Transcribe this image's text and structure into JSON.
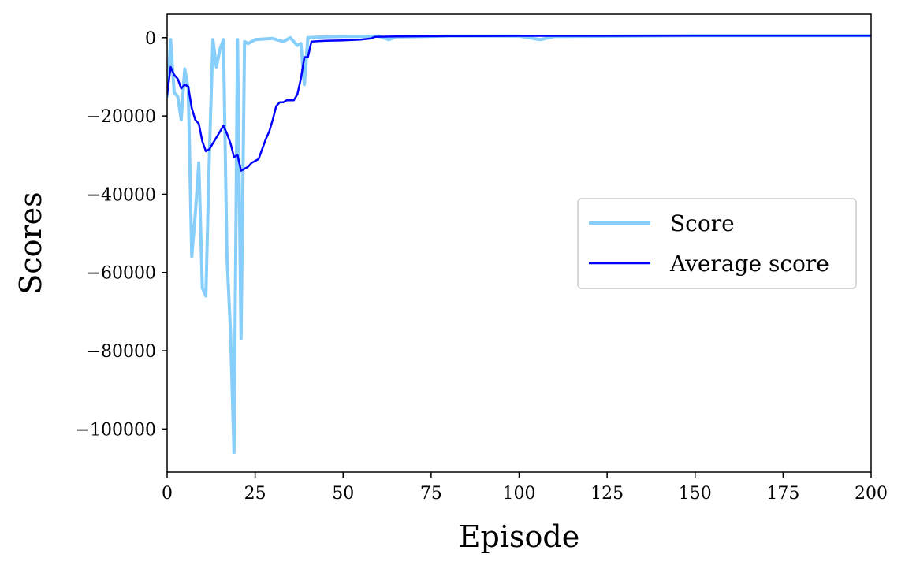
{
  "chart_data": {
    "type": "line",
    "title": "",
    "xlabel": "Episode",
    "ylabel": "Scores",
    "xlim": [
      0,
      200
    ],
    "ylim": [
      -111000,
      6000
    ],
    "xticks": [
      0,
      25,
      50,
      75,
      100,
      125,
      150,
      175,
      200
    ],
    "yticks": [
      0,
      -20000,
      -40000,
      -60000,
      -80000,
      -100000
    ],
    "ytick_labels": [
      "0",
      "−20000",
      "−40000",
      "−60000",
      "−80000",
      "−100000"
    ],
    "grid": false,
    "legend": "center-right",
    "series": [
      {
        "name": "Score",
        "color": "#87cefa",
        "line_width": "thick",
        "points": [
          [
            0,
            -15000
          ],
          [
            1,
            -500
          ],
          [
            2,
            -14000
          ],
          [
            3,
            -15000
          ],
          [
            4,
            -21000
          ],
          [
            5,
            -8000
          ],
          [
            6,
            -13000
          ],
          [
            7,
            -56000
          ],
          [
            8,
            -45000
          ],
          [
            9,
            -32000
          ],
          [
            10,
            -64000
          ],
          [
            11,
            -66000
          ],
          [
            12,
            -30000
          ],
          [
            13,
            -500
          ],
          [
            14,
            -7500
          ],
          [
            15,
            -3000
          ],
          [
            16,
            -500
          ],
          [
            17,
            -56000
          ],
          [
            18,
            -75000
          ],
          [
            19,
            -106000
          ],
          [
            20,
            -500
          ],
          [
            21,
            -77000
          ],
          [
            22,
            -1000
          ],
          [
            23,
            -1500
          ],
          [
            25,
            -500
          ],
          [
            30,
            -200
          ],
          [
            33,
            -1000
          ],
          [
            35,
            0
          ],
          [
            37,
            -2000
          ],
          [
            38,
            -1500
          ],
          [
            39,
            -12000
          ],
          [
            40,
            0
          ],
          [
            45,
            200
          ],
          [
            50,
            300
          ],
          [
            55,
            300
          ],
          [
            60,
            400
          ],
          [
            63,
            -500
          ],
          [
            65,
            200
          ],
          [
            80,
            400
          ],
          [
            100,
            400
          ],
          [
            106,
            -500
          ],
          [
            110,
            300
          ],
          [
            150,
            500
          ],
          [
            200,
            500
          ]
        ]
      },
      {
        "name": "Average score",
        "color": "#0000ff",
        "line_width": "normal",
        "points": [
          [
            0,
            -14500
          ],
          [
            1,
            -7500
          ],
          [
            2,
            -9500
          ],
          [
            3,
            -10500
          ],
          [
            4,
            -13000
          ],
          [
            5,
            -12000
          ],
          [
            6,
            -12500
          ],
          [
            7,
            -18000
          ],
          [
            8,
            -21000
          ],
          [
            9,
            -22000
          ],
          [
            10,
            -26500
          ],
          [
            11,
            -29000
          ],
          [
            12,
            -28500
          ],
          [
            13,
            -27000
          ],
          [
            14,
            -25500
          ],
          [
            15,
            -24000
          ],
          [
            16,
            -22500
          ],
          [
            17,
            -24500
          ],
          [
            18,
            -27000
          ],
          [
            19,
            -30500
          ],
          [
            20,
            -30000
          ],
          [
            21,
            -34000
          ],
          [
            22,
            -33500
          ],
          [
            23,
            -33000
          ],
          [
            24,
            -32000
          ],
          [
            25,
            -31500
          ],
          [
            26,
            -31000
          ],
          [
            27,
            -28500
          ],
          [
            28,
            -26000
          ],
          [
            29,
            -24000
          ],
          [
            30,
            -21000
          ],
          [
            31,
            -17500
          ],
          [
            32,
            -16500
          ],
          [
            33,
            -16500
          ],
          [
            34,
            -16000
          ],
          [
            35,
            -16000
          ],
          [
            36,
            -16000
          ],
          [
            37,
            -14500
          ],
          [
            38,
            -10500
          ],
          [
            39,
            -5000
          ],
          [
            40,
            -5000
          ],
          [
            41,
            -1000
          ],
          [
            45,
            -800
          ],
          [
            50,
            -700
          ],
          [
            55,
            -500
          ],
          [
            58,
            -200
          ],
          [
            59,
            200
          ],
          [
            65,
            300
          ],
          [
            80,
            400
          ],
          [
            100,
            450
          ],
          [
            150,
            500
          ],
          [
            200,
            500
          ]
        ]
      }
    ]
  }
}
